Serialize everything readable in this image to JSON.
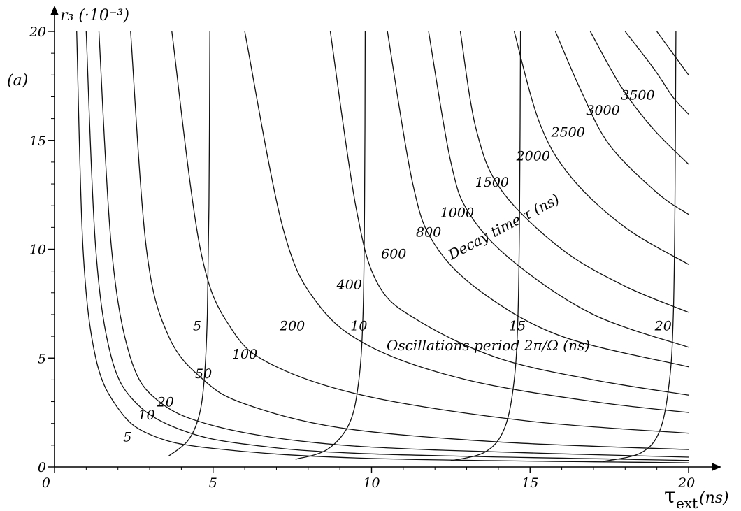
{
  "chart_data": {
    "type": "line",
    "panel_label": "(a)",
    "x_axis": {
      "symbol": "τ",
      "subscript": "ext",
      "unit": "(ns)",
      "range": [
        0,
        20
      ],
      "ticks": [
        0,
        5,
        10,
        15,
        20
      ],
      "tick_labels": [
        "0",
        "5",
        "10",
        "15",
        "20"
      ],
      "end_label": "20"
    },
    "y_axis": {
      "label": "r₃ (·10⁻³)",
      "range": [
        0,
        20
      ],
      "ticks": [
        0,
        5,
        10,
        15,
        20
      ],
      "tick_labels": [
        "0",
        "5",
        "10",
        "15",
        "20"
      ]
    },
    "annotations": {
      "decay": "Decay time τ (ns)",
      "oscillation": "Oscillations period 2π/Ω (ns)"
    },
    "decay_time_contours": [
      {
        "label": "5",
        "points": [
          [
            0.7,
            20
          ],
          [
            0.9,
            10
          ],
          [
            1.3,
            5
          ],
          [
            2.0,
            2.7
          ],
          [
            3.0,
            1.5
          ],
          [
            5,
            0.85
          ],
          [
            10,
            0.39
          ],
          [
            20,
            0.19
          ]
        ]
      },
      {
        "label": "10",
        "points": [
          [
            1.0,
            20
          ],
          [
            1.3,
            10
          ],
          [
            1.8,
            5
          ],
          [
            2.6,
            2.9
          ],
          [
            4,
            1.7
          ],
          [
            6,
            1.05
          ],
          [
            10,
            0.6
          ],
          [
            20,
            0.3
          ]
        ]
      },
      {
        "label": "20",
        "points": [
          [
            1.4,
            20
          ],
          [
            1.8,
            10
          ],
          [
            2.4,
            5
          ],
          [
            3.3,
            3.0
          ],
          [
            5,
            1.9
          ],
          [
            8,
            1.15
          ],
          [
            12,
            0.78
          ],
          [
            20,
            0.45
          ]
        ]
      },
      {
        "label": "50",
        "points": [
          [
            2.4,
            20
          ],
          [
            2.9,
            10
          ],
          [
            3.6,
            6
          ],
          [
            4.7,
            4.0
          ],
          [
            6,
            2.9
          ],
          [
            9,
            1.8
          ],
          [
            14,
            1.15
          ],
          [
            20,
            0.8
          ]
        ]
      },
      {
        "label": "100",
        "points": [
          [
            3.7,
            20
          ],
          [
            4.6,
            10
          ],
          [
            5.6,
            6.3
          ],
          [
            7,
            4.6
          ],
          [
            10,
            3.2
          ],
          [
            15,
            2.1
          ],
          [
            20,
            1.55
          ]
        ]
      },
      {
        "label": "200",
        "points": [
          [
            6.0,
            20
          ],
          [
            7.2,
            11
          ],
          [
            8.3,
            7.5
          ],
          [
            10,
            5.5
          ],
          [
            13,
            4.0
          ],
          [
            17,
            3.0
          ],
          [
            20,
            2.5
          ]
        ]
      },
      {
        "label": "400",
        "points": [
          [
            8.7,
            20
          ],
          [
            9.5,
            12
          ],
          [
            10.2,
            8.4
          ],
          [
            11.5,
            6.7
          ],
          [
            14,
            5.0
          ],
          [
            17,
            4.0
          ],
          [
            20,
            3.3
          ]
        ]
      },
      {
        "label": "600",
        "points": [
          [
            10.5,
            20
          ],
          [
            11.3,
            13
          ],
          [
            12.0,
            10.2
          ],
          [
            13.5,
            8.0
          ],
          [
            16,
            6.0
          ],
          [
            20,
            4.6
          ]
        ]
      },
      {
        "label": "800",
        "points": [
          [
            11.8,
            20
          ],
          [
            12.5,
            14
          ],
          [
            13.1,
            11.6
          ],
          [
            14.5,
            9.4
          ],
          [
            17,
            7.0
          ],
          [
            20,
            5.5
          ]
        ]
      },
      {
        "label": "1000",
        "points": [
          [
            12.8,
            20
          ],
          [
            13.3,
            15.5
          ],
          [
            14.1,
            12.7
          ],
          [
            16,
            10.0
          ],
          [
            18,
            8.3
          ],
          [
            20,
            7.1
          ]
        ]
      },
      {
        "label": "1500",
        "points": [
          [
            14.5,
            20
          ],
          [
            15.3,
            15.8
          ],
          [
            16.3,
            13.3
          ],
          [
            18,
            11.0
          ],
          [
            20,
            9.3
          ]
        ]
      },
      {
        "label": "2000",
        "points": [
          [
            15.8,
            20
          ],
          [
            16.6,
            17.3
          ],
          [
            17.5,
            14.8
          ],
          [
            19,
            12.6
          ],
          [
            20,
            11.6
          ]
        ]
      },
      {
        "label": "2500",
        "points": [
          [
            16.9,
            20
          ],
          [
            17.9,
            17.4
          ],
          [
            18.9,
            15.5
          ],
          [
            20,
            13.9
          ]
        ]
      },
      {
        "label": "3000",
        "points": [
          [
            18.0,
            20
          ],
          [
            18.9,
            18.3
          ],
          [
            19.5,
            17.0
          ],
          [
            20,
            16.2
          ]
        ]
      },
      {
        "label": "3500",
        "points": [
          [
            19.0,
            20
          ],
          [
            19.6,
            18.8
          ],
          [
            20,
            18.0
          ]
        ]
      }
    ],
    "oscillation_period_contours": [
      {
        "label": "5",
        "points": [
          [
            3.6,
            0.5
          ],
          [
            4.2,
            1.2
          ],
          [
            4.55,
            2.3
          ],
          [
            4.72,
            4.0
          ],
          [
            4.82,
            7.0
          ],
          [
            4.87,
            12
          ],
          [
            4.9,
            20
          ]
        ]
      },
      {
        "label": "10",
        "points": [
          [
            7.6,
            0.35
          ],
          [
            8.6,
            0.8
          ],
          [
            9.3,
            2.0
          ],
          [
            9.6,
            4.0
          ],
          [
            9.73,
            7.0
          ],
          [
            9.78,
            12
          ],
          [
            9.8,
            20
          ]
        ]
      },
      {
        "label": "15",
        "points": [
          [
            12.5,
            0.28
          ],
          [
            13.6,
            0.7
          ],
          [
            14.2,
            1.8
          ],
          [
            14.5,
            4.0
          ],
          [
            14.62,
            7.0
          ],
          [
            14.67,
            12
          ],
          [
            14.7,
            20
          ]
        ]
      },
      {
        "label": "20",
        "points": [
          [
            17.3,
            0.25
          ],
          [
            18.5,
            0.65
          ],
          [
            19.1,
            1.7
          ],
          [
            19.4,
            4.0
          ],
          [
            19.52,
            7.0
          ],
          [
            19.57,
            12
          ],
          [
            19.6,
            20
          ]
        ]
      }
    ]
  }
}
